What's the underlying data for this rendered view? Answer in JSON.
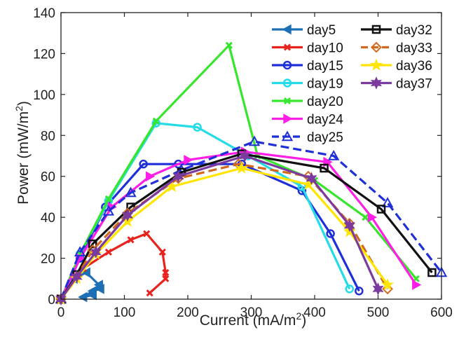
{
  "chart_data": {
    "type": "line",
    "title": "",
    "xlabel": "Current (mA/m",
    "xlabel_sup": "2",
    "xlabel_end": ")",
    "ylabel": "Power (mW/m",
    "ylabel_sup": "2",
    "ylabel_end": ")",
    "xlim": [
      0,
      600
    ],
    "ylim": [
      0,
      140
    ],
    "xticks": [
      0,
      100,
      200,
      300,
      400,
      500,
      600
    ],
    "yticks": [
      0,
      20,
      40,
      60,
      80,
      100,
      120,
      140
    ],
    "grid": false,
    "legend_placement": "top-right",
    "series": [
      {
        "name": "day5",
        "color": "#1f6fb5",
        "marker": "triangle-left",
        "dash": "solid",
        "x": [
          0,
          20,
          40,
          60,
          50,
          35,
          50,
          62
        ],
        "y": [
          0,
          10,
          13,
          7,
          2,
          1,
          4,
          5
        ]
      },
      {
        "name": "day10",
        "color": "#e8231d",
        "marker": "x",
        "dash": "solid",
        "x": [
          0,
          35,
          75,
          110,
          135,
          160,
          165,
          165,
          140
        ],
        "y": [
          0,
          15,
          23,
          29,
          32,
          23,
          13,
          10,
          3
        ]
      },
      {
        "name": "day15",
        "color": "#1f2fd8",
        "marker": "circle",
        "dash": "solid",
        "x": [
          0,
          30,
          70,
          130,
          185,
          285,
          380,
          425,
          470
        ],
        "y": [
          0,
          20,
          45,
          66,
          66,
          66,
          53,
          32,
          4
        ]
      },
      {
        "name": "day19",
        "color": "#24dbe8",
        "marker": "circle",
        "dash": "solid",
        "x": [
          0,
          30,
          75,
          150,
          215,
          295,
          380,
          455
        ],
        "y": [
          0,
          22,
          48,
          86,
          84,
          70,
          55,
          5
        ]
      },
      {
        "name": "day20",
        "color": "#37e62c",
        "marker": "x",
        "dash": "solid",
        "x": [
          0,
          30,
          75,
          150,
          265,
          310,
          400,
          480,
          560
        ],
        "y": [
          0,
          22,
          49,
          87,
          124,
          70,
          58,
          40,
          10
        ]
      },
      {
        "name": "day24",
        "color": "#ff1ee6",
        "marker": "triangle-right",
        "dash": "solid",
        "x": [
          0,
          30,
          80,
          140,
          200,
          290,
          420,
          490,
          560
        ],
        "y": [
          0,
          20,
          45,
          60,
          68,
          72,
          67,
          40,
          7
        ]
      },
      {
        "name": "day25",
        "color": "#1f2fd8",
        "marker": "triangle-up",
        "dash": "dash",
        "x": [
          0,
          30,
          75,
          110,
          190,
          305,
          430,
          515,
          600
        ],
        "y": [
          0,
          23,
          43,
          52,
          63,
          77,
          70,
          47,
          13
        ]
      },
      {
        "name": "day32",
        "color": "#111111",
        "marker": "square",
        "dash": "solid",
        "x": [
          0,
          25,
          50,
          110,
          190,
          285,
          415,
          505,
          585
        ],
        "y": [
          0,
          12,
          27,
          45,
          62,
          71,
          64,
          44,
          13
        ]
      },
      {
        "name": "day33",
        "color": "#d2691e",
        "marker": "diamond",
        "dash": "dash",
        "x": [
          0,
          25,
          50,
          105,
          185,
          280,
          390,
          455,
          515
        ],
        "y": [
          0,
          11,
          24,
          42,
          59,
          66,
          60,
          37,
          5
        ]
      },
      {
        "name": "day36",
        "color": "#ffe500",
        "marker": "star5",
        "dash": "solid",
        "x": [
          0,
          25,
          55,
          105,
          175,
          285,
          390,
          455,
          515
        ],
        "y": [
          0,
          10,
          22,
          38,
          55,
          64,
          56,
          33,
          7
        ]
      },
      {
        "name": "day37",
        "color": "#7b3a9e",
        "marker": "star6",
        "dash": "solid",
        "x": [
          0,
          25,
          55,
          105,
          185,
          290,
          395,
          455,
          500
        ],
        "y": [
          0,
          11,
          23,
          41,
          60,
          70,
          59,
          36,
          5
        ]
      }
    ]
  }
}
